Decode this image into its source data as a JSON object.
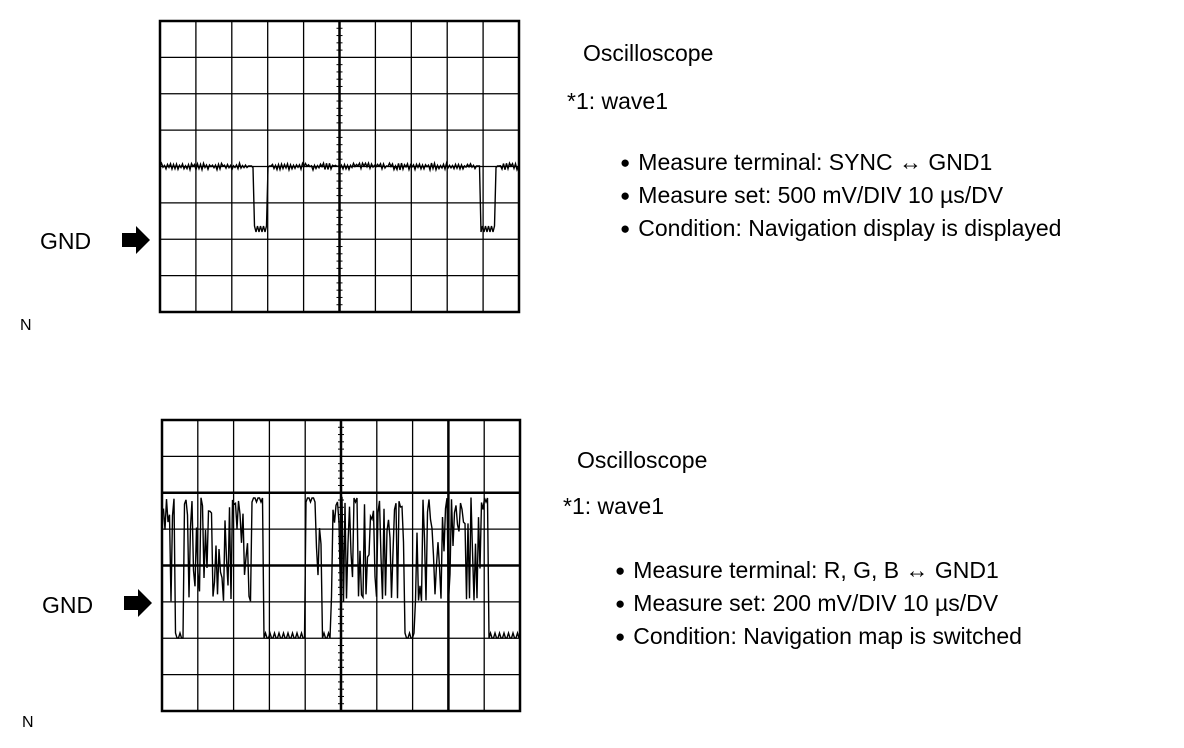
{
  "panels": [
    {
      "title": "Oscilloscope",
      "wave_label": "*1: wave1",
      "ground_label": "GND",
      "corner_label": "N",
      "bullets": [
        "Measure terminal: SYNC ↔ GND1",
        "Measure set: 500 mV/DIV 10 µs/DV",
        "Condition: Navigation display is displayed"
      ]
    },
    {
      "title": "Oscilloscope",
      "wave_label": "*1: wave1",
      "ground_label": "GND",
      "corner_label": "N",
      "bullets": [
        "Measure terminal: R, G, B ↔ GND1",
        "Measure set: 200 mV/DIV 10 µs/DV",
        "Condition: Navigation map is switched"
      ]
    }
  ]
}
